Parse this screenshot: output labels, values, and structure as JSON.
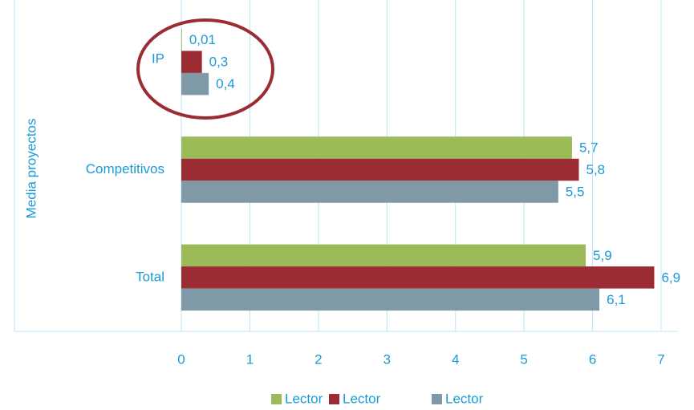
{
  "chart_data": {
    "type": "bar",
    "orientation": "horizontal",
    "y_label": "Media proyectos",
    "categories": [
      "IP",
      "Competitivos",
      "Total"
    ],
    "series": [
      {
        "name": "Lector",
        "color": "#9bbb59",
        "values": [
          0.01,
          5.7,
          5.9
        ],
        "value_labels": [
          "0,01",
          "5,7",
          "5,9"
        ]
      },
      {
        "name": "Lector",
        "color": "#9b2c34",
        "values": [
          0.3,
          5.8,
          6.9
        ],
        "value_labels": [
          "0,3",
          "5,8",
          "6,9"
        ]
      },
      {
        "name": "Lector",
        "color": "#7f9aa6",
        "values": [
          0.4,
          5.5,
          6.1
        ],
        "value_labels": [
          "0,4",
          "5,5",
          "6,1"
        ]
      }
    ],
    "xlim": [
      0,
      7
    ],
    "xticks": [
      0,
      1,
      2,
      3,
      4,
      5,
      6,
      7
    ],
    "grid": true
  }
}
